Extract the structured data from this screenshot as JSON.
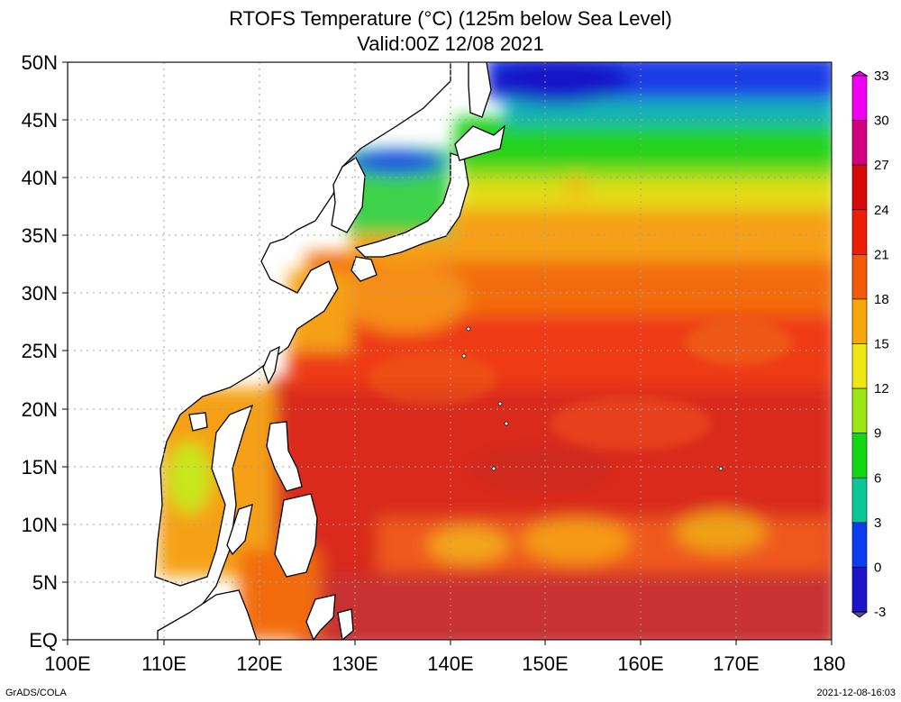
{
  "title": {
    "line1": "RTOFS Temperature (°C) (125m below Sea Level)",
    "line2": "Valid:00Z 12/08 2021"
  },
  "axes": {
    "lon_labels": [
      "100E",
      "110E",
      "120E",
      "130E",
      "140E",
      "150E",
      "160E",
      "170E",
      "180"
    ],
    "lon_values": [
      100,
      110,
      120,
      130,
      140,
      150,
      160,
      170,
      180
    ],
    "lat_labels": [
      "EQ",
      "5N",
      "10N",
      "15N",
      "20N",
      "25N",
      "30N",
      "35N",
      "40N",
      "45N",
      "50N"
    ],
    "lat_values": [
      0,
      5,
      10,
      15,
      20,
      25,
      30,
      35,
      40,
      45,
      50
    ],
    "lon_range": [
      100,
      180
    ],
    "lat_range": [
      0,
      50
    ],
    "grid": true
  },
  "colorbar": {
    "labels": [
      "33",
      "30",
      "27",
      "24",
      "21",
      "18",
      "15",
      "12",
      "9",
      "6",
      "3",
      "0",
      "-3"
    ],
    "values": [
      33,
      30,
      27,
      24,
      21,
      18,
      15,
      12,
      9,
      6,
      3,
      0,
      -3
    ],
    "colors": [
      "#f000f0",
      "#d2007d",
      "#d70a0a",
      "#ec1f06",
      "#f25a0a",
      "#f8a60a",
      "#f0e614",
      "#9be614",
      "#14d714",
      "#0ac896",
      "#0a3cf0",
      "#1e14c8",
      "#5050a0"
    ]
  },
  "credits": {
    "left": "GrADS/COLA",
    "right": "2021-12-08-16:03"
  },
  "chart_data": {
    "type": "heatmap",
    "variable": "RTOFS Temperature (°C) (125m below Sea Level)",
    "valid": "Valid:00Z 12/08 2021",
    "x_range": [
      100,
      180
    ],
    "y_range": [
      0,
      50
    ],
    "color_range": [
      -3,
      33
    ],
    "bands": [
      {
        "lat": [
          45,
          50
        ],
        "lon": [
          145,
          180
        ],
        "temp": 2
      },
      {
        "lat": [
          40,
          45
        ],
        "lon": [
          135,
          180
        ],
        "temp": 8
      },
      {
        "lat": [
          36,
          40
        ],
        "lon": [
          142,
          180
        ],
        "temp": 14
      },
      {
        "lat": [
          30,
          36
        ],
        "lon": [
          135,
          180
        ],
        "temp": 19
      },
      {
        "lat": [
          22,
          30
        ],
        "lon": [
          125,
          180
        ],
        "temp": 21
      },
      {
        "lat": [
          10,
          22
        ],
        "lon": [
          122,
          180
        ],
        "temp": 24
      },
      {
        "lat": [
          5,
          10
        ],
        "lon": [
          130,
          180
        ],
        "temp": 21
      },
      {
        "lat": [
          0,
          5
        ],
        "lon": [
          130,
          180
        ],
        "temp": 26
      }
    ]
  }
}
